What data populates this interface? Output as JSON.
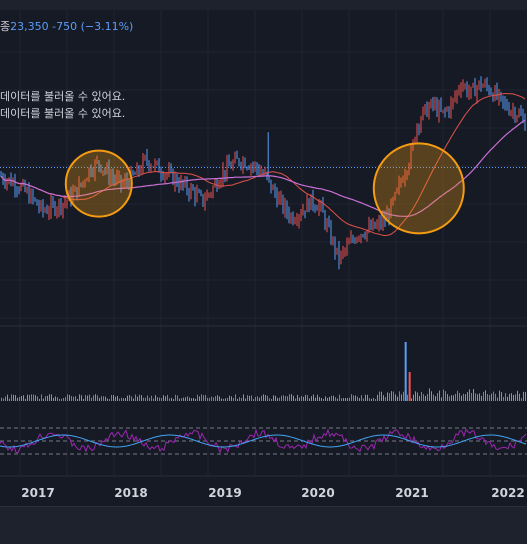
{
  "header": {
    "price_prefix": "종",
    "price": "23,350",
    "change": "-750",
    "change_pct": "(−3.11%)"
  },
  "notices": [
    "데이터를 불러올 수 있어요.",
    "데이터를 불러올 수 있어요."
  ],
  "colors": {
    "background": "#161a25",
    "up_candle": "#ef5350",
    "down_candle": "#5b9cf6",
    "ma_short": "#e0524b",
    "ma_long": "#c96fd6",
    "highlight_circle": "#f39c12",
    "rsi_line": "#9c27b0",
    "rsi_signal": "#42a5f5"
  },
  "chart_data": {
    "type": "candlestick",
    "x_labels": [
      "2017",
      "2018",
      "2019",
      "2020",
      "2021",
      "2022"
    ],
    "price_path": [
      [
        2016.6,
        26500
      ],
      [
        2016.8,
        25900
      ],
      [
        2016.95,
        25000
      ],
      [
        2017.05,
        24300
      ],
      [
        2017.15,
        24500
      ],
      [
        2017.3,
        24900
      ],
      [
        2017.45,
        25800
      ],
      [
        2017.55,
        26900
      ],
      [
        2017.65,
        27300
      ],
      [
        2017.75,
        26600
      ],
      [
        2017.9,
        25900
      ],
      [
        2018.05,
        26600
      ],
      [
        2018.15,
        27500
      ],
      [
        2018.3,
        26900
      ],
      [
        2018.45,
        26300
      ],
      [
        2018.55,
        25800
      ],
      [
        2018.65,
        25500
      ],
      [
        2018.75,
        24900
      ],
      [
        2018.85,
        25600
      ],
      [
        2018.95,
        26600
      ],
      [
        2019.05,
        27100
      ],
      [
        2019.15,
        27500
      ],
      [
        2019.3,
        27100
      ],
      [
        2019.4,
        26600
      ],
      [
        2019.5,
        25600
      ],
      [
        2019.6,
        24600
      ],
      [
        2019.7,
        23900
      ],
      [
        2019.8,
        24300
      ],
      [
        2019.9,
        24900
      ],
      [
        2020.0,
        24600
      ],
      [
        2020.1,
        22900
      ],
      [
        2020.2,
        21300
      ],
      [
        2020.3,
        22100
      ],
      [
        2020.4,
        22900
      ],
      [
        2020.5,
        23100
      ],
      [
        2020.6,
        23300
      ],
      [
        2020.7,
        23800
      ],
      [
        2020.8,
        25100
      ],
      [
        2020.9,
        26800
      ],
      [
        2020.98,
        28000
      ],
      [
        2021.02,
        29600
      ],
      [
        2021.1,
        30400
      ],
      [
        2021.2,
        30900
      ],
      [
        2021.3,
        30300
      ],
      [
        2021.4,
        30900
      ],
      [
        2021.5,
        32300
      ],
      [
        2021.6,
        31600
      ],
      [
        2021.7,
        32200
      ],
      [
        2021.8,
        31900
      ],
      [
        2021.95,
        30900
      ],
      [
        2022.1,
        30400
      ],
      [
        2022.2,
        29600
      ]
    ],
    "volume_spike_year": 2020.9,
    "moving_averages": [
      "short",
      "long"
    ],
    "highlights": [
      {
        "x": 2017.65,
        "y": 26000,
        "label": ""
      },
      {
        "x": 2021.05,
        "y": 25700,
        "label": ""
      }
    ],
    "reference_level": 27000,
    "rsi_band": [
      30,
      70
    ]
  }
}
